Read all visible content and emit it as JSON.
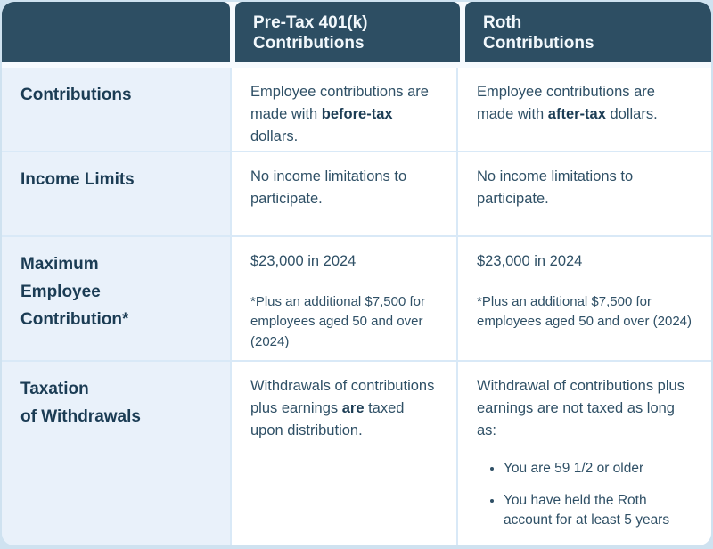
{
  "theme": {
    "header_bg": "#2d4e63",
    "header_text": "#f2f8fc",
    "label_cell_bg": "#e9f1fa",
    "body_cell_bg": "#ffffff",
    "grid_line": "#d9e9f7",
    "page_bg": "#cfe2f0",
    "label_text": "#1b3c54",
    "body_text": "#2f5066"
  },
  "header": {
    "blank": "",
    "pretax": "Pre-Tax 401(k)\nContributions",
    "roth": "Roth\nContributions"
  },
  "rows": {
    "contributions": {
      "label": "Contributions",
      "pretax": {
        "pre": "Employee contributions are made with ",
        "bold": "before-tax",
        "post": " dollars."
      },
      "roth": {
        "pre": "Employee contributions are made with ",
        "bold": "after-tax",
        "post": " dollars."
      }
    },
    "income_limits": {
      "label": "Income Limits",
      "pretax": "No income limitations\nto participate.",
      "roth": "No income limitations\nto participate."
    },
    "max_contribution": {
      "label": "Maximum\nEmployee\nContribution*",
      "pretax": {
        "amount": "$23,000 in 2024",
        "footnote": "*Plus an additional $7,500 for employees aged 50 and over (2024)"
      },
      "roth": {
        "amount": "$23,000 in 2024",
        "footnote": "*Plus an additional $7,500 for employees aged 50 and over (2024)"
      }
    },
    "taxation": {
      "label": "Taxation\nof Withdrawals",
      "pretax": {
        "pre": "Withdrawals of contributions plus earnings ",
        "bold": "are",
        "post": " taxed upon distribution."
      },
      "roth": {
        "intro": "Withdrawal of contributions plus earnings are not taxed as long as:",
        "bullets": [
          "You are 59 1/2 or older",
          "You have held the Roth account for at least 5 years"
        ]
      }
    }
  }
}
